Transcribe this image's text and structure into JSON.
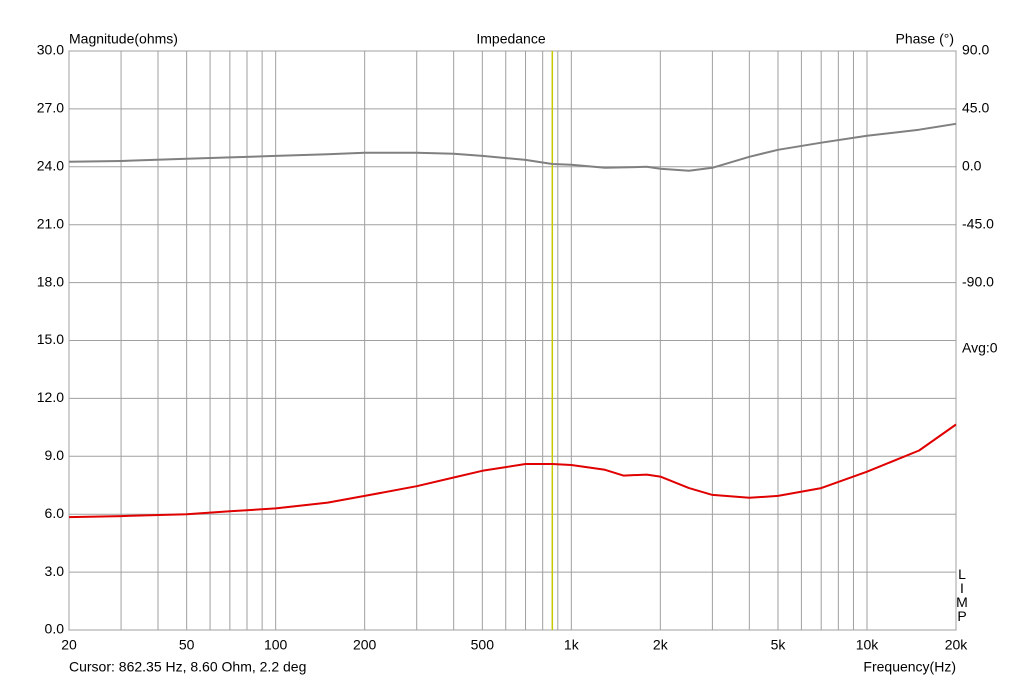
{
  "chart_data": {
    "type": "line",
    "title": "Impedance",
    "ylabel": "Magnitude(ohms)",
    "y2label": "Phase (°)",
    "xlabel": "Frequency(Hz)",
    "annotations": [
      "Avg:0",
      "LIMP"
    ],
    "cursor_text": "Cursor: 862.35 Hz, 8.60 Ohm, 2.2 deg",
    "cursor_x": 862.35,
    "cursor_color": "#c8c800",
    "log_x": true,
    "grid": true,
    "xlim": [
      20,
      20000
    ],
    "xticks": [
      20,
      50,
      100,
      200,
      500,
      {
        "value": 1000,
        "label": "1k"
      },
      {
        "value": 2000,
        "label": "2k"
      },
      {
        "value": 5000,
        "label": "5k"
      },
      {
        "value": 10000,
        "label": "10k"
      },
      {
        "value": 20000,
        "label": "20k"
      }
    ],
    "xminor": [
      30,
      40,
      60,
      70,
      80,
      90,
      300,
      400,
      600,
      700,
      800,
      900,
      3000,
      4000,
      6000,
      7000,
      8000,
      9000
    ],
    "ylim": [
      0,
      30
    ],
    "yticks": [
      {
        "value": 0,
        "label": "0.0"
      },
      {
        "value": 3,
        "label": "3.0"
      },
      {
        "value": 6,
        "label": "6.0"
      },
      {
        "value": 9,
        "label": "9.0"
      },
      {
        "value": 12,
        "label": "12.0"
      },
      {
        "value": 15,
        "label": "15.0"
      },
      {
        "value": 18,
        "label": "18.0"
      },
      {
        "value": 21,
        "label": "21.0"
      },
      {
        "value": 24,
        "label": "24.0"
      },
      {
        "value": 27,
        "label": "27.0"
      },
      {
        "value": 30,
        "label": "30.0"
      }
    ],
    "y2lim": [
      -360,
      90
    ],
    "y2ticks": [
      {
        "value": -90,
        "label": "-90.0"
      },
      {
        "value": -45,
        "label": "-45.0"
      },
      {
        "value": 0,
        "label": "0.0"
      },
      {
        "value": 45,
        "label": "45.0"
      },
      {
        "value": 90,
        "label": "90.0"
      }
    ],
    "x": [
      20,
      30,
      50,
      70,
      100,
      150,
      200,
      300,
      400,
      500,
      700,
      862.35,
      1000,
      1300,
      1500,
      1800,
      2000,
      2500,
      3000,
      4000,
      5000,
      7000,
      10000,
      15000,
      20000
    ],
    "series": [
      {
        "name": "Magnitude",
        "color": "#e00000",
        "values": [
          5.85,
          5.9,
          6.0,
          6.15,
          6.3,
          6.6,
          6.95,
          7.45,
          7.9,
          8.25,
          8.6,
          8.6,
          8.55,
          8.3,
          8.0,
          8.05,
          7.95,
          7.35,
          7.0,
          6.85,
          6.95,
          7.35,
          8.2,
          9.3,
          10.65
        ]
      },
      {
        "name": "Phase",
        "color": "#808080",
        "axis": "y2",
        "values": [
          3.9,
          4.5,
          6.2,
          7.3,
          8.5,
          9.7,
          10.9,
          10.9,
          10.1,
          8.5,
          5.4,
          2.2,
          1.6,
          -0.8,
          -0.5,
          0,
          -1.5,
          -3.1,
          -0.8,
          7.8,
          13.2,
          18.7,
          24.1,
          28.8,
          33.4
        ]
      }
    ]
  }
}
